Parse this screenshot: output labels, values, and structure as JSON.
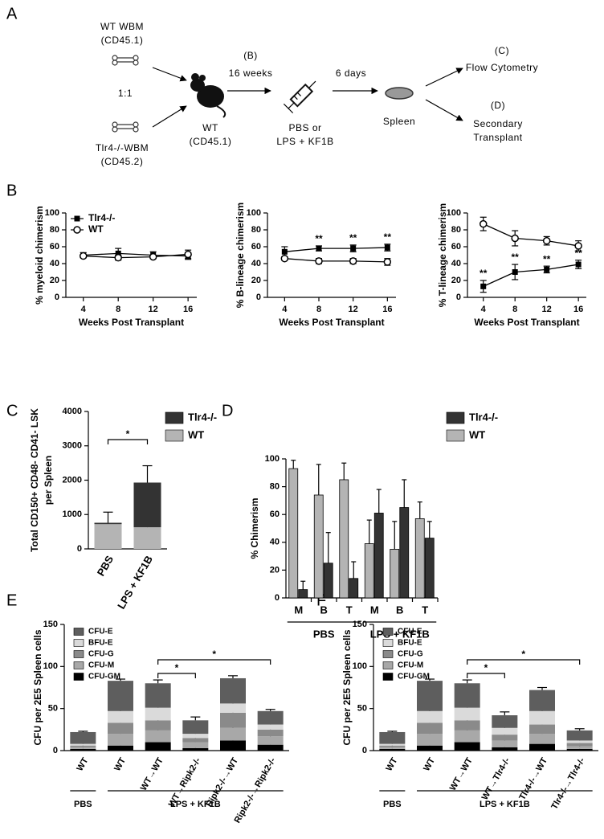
{
  "panel_labels": [
    "A",
    "B",
    "C",
    "D",
    "E",
    "F"
  ],
  "diagram": {
    "donor_wt": [
      "WT WBM",
      "(CD45.1)"
    ],
    "ratio": "1:1",
    "donor_ko": [
      "Tlr4-/-WBM",
      "(CD45.2)"
    ],
    "recipient": [
      "WT",
      "(CD45.1)"
    ],
    "wait": [
      "(B)",
      "16 weeks"
    ],
    "treatment": [
      "PBS or",
      "LPS + KF1B"
    ],
    "interval": "6 days",
    "organ": "Spleen",
    "readout_c": [
      "(C)",
      "Flow Cytometry"
    ],
    "readout_d": [
      "(D)",
      "Secondary",
      "Transplant"
    ]
  },
  "chart_data": [
    {
      "type": "line",
      "xlabel": "Weeks Post Transplant",
      "ylabel": [
        "% myeloid chimerism"
      ],
      "x": [
        4,
        8,
        12,
        16
      ],
      "xlim": [
        2,
        17
      ],
      "xticks": [
        4,
        8,
        12,
        16
      ],
      "ylim": [
        0,
        100
      ],
      "yticks": [
        0,
        20,
        40,
        60,
        80,
        100
      ],
      "legend": "upper-left",
      "series": [
        {
          "name": "Tlr4-/-",
          "marker": "filled-square",
          "color": "#000000",
          "values": [
            50,
            52,
            50,
            49
          ],
          "errors": [
            3,
            6,
            4,
            4
          ]
        },
        {
          "name": "WT",
          "marker": "open-circle",
          "color": "#000000",
          "values": [
            49,
            47,
            48,
            51
          ],
          "errors": [
            2,
            3,
            2,
            5
          ]
        }
      ]
    },
    {
      "type": "line",
      "xlabel": "Weeks Post Transplant",
      "ylabel": [
        "% B-lineage chimerism"
      ],
      "x": [
        4,
        8,
        12,
        16
      ],
      "xlim": [
        2,
        17
      ],
      "xticks": [
        4,
        8,
        12,
        16
      ],
      "ylim": [
        0,
        100
      ],
      "yticks": [
        0,
        20,
        40,
        60,
        80,
        100
      ],
      "series": [
        {
          "marker": "filled-square",
          "color": "#000000",
          "values": [
            54,
            58,
            58,
            59
          ],
          "errors": [
            6,
            3,
            4,
            4
          ],
          "annotations": [
            null,
            "**",
            "**",
            "**"
          ]
        },
        {
          "marker": "open-circle",
          "color": "#000000",
          "values": [
            46,
            43,
            43,
            42
          ],
          "errors": [
            2,
            3,
            3,
            4
          ]
        }
      ]
    },
    {
      "type": "line",
      "xlabel": "Weeks Post Transplant",
      "ylabel": [
        "% T-lineage chimerism"
      ],
      "x": [
        4,
        8,
        12,
        16
      ],
      "xlim": [
        2,
        17
      ],
      "xticks": [
        4,
        8,
        12,
        16
      ],
      "ylim": [
        0,
        100
      ],
      "yticks": [
        0,
        20,
        40,
        60,
        80,
        100
      ],
      "series": [
        {
          "marker": "filled-square",
          "color": "#000000",
          "values": [
            13,
            30,
            33,
            39
          ],
          "errors": [
            7,
            9,
            4,
            5
          ],
          "annotations": [
            "**",
            "**",
            "**",
            "**"
          ]
        },
        {
          "marker": "open-circle",
          "color": "#000000",
          "values": [
            87,
            70,
            67,
            61
          ],
          "errors": [
            8,
            9,
            5,
            6
          ]
        }
      ]
    },
    {
      "type": "stacked-bar",
      "ylabel": [
        "Total CD150+ CD48- CD41- LSK",
        "per Spleen"
      ],
      "categories": [
        "PBS",
        "LPS + KF1B"
      ],
      "ylim": [
        0,
        4000
      ],
      "yticks": [
        0,
        1000,
        2000,
        3000,
        4000
      ],
      "legend": "upper-right",
      "series": [
        {
          "name": "WT",
          "color": "#b4b4b4",
          "values": [
            720,
            630
          ],
          "errors": [
            null,
            60
          ]
        },
        {
          "name": "Tlr4-/-",
          "color": "#333333",
          "values": [
            40,
            1300
          ],
          "errors": [
            310,
            490
          ]
        }
      ],
      "brackets": [
        {
          "text": "*",
          "from": 0,
          "to": 1
        }
      ]
    },
    {
      "type": "grouped-bar",
      "ylabel": [
        "% Chimerism"
      ],
      "categories": [
        "M",
        "B",
        "T",
        "M",
        "B",
        "T"
      ],
      "groups": [
        "PBS",
        "LPS + KF1B"
      ],
      "ylim": [
        0,
        100
      ],
      "yticks": [
        0,
        20,
        40,
        60,
        80,
        100
      ],
      "legend": "upper-right",
      "series": [
        {
          "name": "Tlr4-/-",
          "color": "#333333",
          "values": [
            6,
            25,
            14,
            61,
            65,
            43
          ],
          "errors": [
            6,
            22,
            12,
            17,
            20,
            12
          ]
        },
        {
          "name": "WT",
          "color": "#b4b4b4",
          "values": [
            93,
            74,
            85,
            39,
            35,
            57
          ],
          "errors": [
            6,
            22,
            12,
            17,
            20,
            12
          ]
        }
      ]
    },
    {
      "type": "stacked-bar",
      "ylabel": [
        "CFU per 2E5 Spleen cells"
      ],
      "categories": [
        "WT",
        "WT",
        "WT→WT",
        "WT→Ripk2-/-",
        "Ripk2-/-→WT",
        "Ripk2-/-→Ripk2-/-"
      ],
      "groups": [
        "PBS",
        "LPS + KF1B"
      ],
      "ylim": [
        0,
        150
      ],
      "yticks": [
        0,
        50,
        100,
        150
      ],
      "legend": "upper-left",
      "series": [
        {
          "name": "CFU-GM",
          "color": "#000000",
          "values": [
            2,
            6,
            10,
            3,
            12,
            7
          ],
          "errors": [
            1,
            1,
            2,
            1,
            2,
            1
          ]
        },
        {
          "name": "CFU-M",
          "color": "#a8a8a8",
          "values": [
            2,
            14,
            14,
            7,
            15,
            10
          ],
          "errors": [
            1,
            2,
            2,
            1,
            3,
            1
          ]
        },
        {
          "name": "CFU-G",
          "color": "#8a8a8a",
          "values": [
            2,
            13,
            12,
            5,
            18,
            8
          ],
          "errors": [
            1,
            3,
            3,
            2,
            3,
            2
          ]
        },
        {
          "name": "BFU-E",
          "color": "#dadada",
          "values": [
            2,
            14,
            15,
            5,
            11,
            6
          ],
          "errors": [
            1,
            2,
            3,
            2,
            3,
            2
          ]
        },
        {
          "name": "CFU-E",
          "color": "#5e5e5e",
          "values": [
            14,
            36,
            29,
            16,
            30,
            16
          ],
          "errors": [
            1,
            2,
            4,
            4,
            3,
            2
          ]
        }
      ],
      "brackets": [
        {
          "text": "*",
          "from": 2,
          "to": 3
        },
        {
          "text": "*",
          "from": 2,
          "to": 5
        }
      ]
    },
    {
      "type": "stacked-bar",
      "ylabel": [
        "CFU per 2E5 Spleen cells"
      ],
      "categories": [
        "WT",
        "WT",
        "WT→WT",
        "WT→Tlr4-/-",
        "Tlr4-/-→WT",
        "Tlr4-/-→Tlr4-/-"
      ],
      "groups": [
        "PBS",
        "LPS + KF1B"
      ],
      "ylim": [
        0,
        150
      ],
      "yticks": [
        0,
        50,
        100,
        150
      ],
      "legend": "upper-left",
      "series": [
        {
          "name": "CFU-GM",
          "color": "#000000",
          "values": [
            2,
            6,
            10,
            4,
            8,
            2
          ],
          "errors": [
            1,
            1,
            2,
            1,
            2,
            1
          ]
        },
        {
          "name": "CFU-M",
          "color": "#a8a8a8",
          "values": [
            2,
            14,
            14,
            8,
            12,
            3
          ],
          "errors": [
            1,
            2,
            2,
            2,
            2,
            1
          ]
        },
        {
          "name": "CFU-G",
          "color": "#8a8a8a",
          "values": [
            2,
            13,
            12,
            7,
            11,
            4
          ],
          "errors": [
            1,
            3,
            3,
            2,
            2,
            1
          ]
        },
        {
          "name": "BFU-E",
          "color": "#dadada",
          "values": [
            2,
            14,
            15,
            8,
            16,
            3
          ],
          "errors": [
            1,
            2,
            3,
            2,
            2,
            1
          ]
        },
        {
          "name": "CFU-E",
          "color": "#5e5e5e",
          "values": [
            14,
            36,
            29,
            15,
            25,
            12
          ],
          "errors": [
            1,
            2,
            4,
            4,
            3,
            2
          ]
        }
      ],
      "brackets": [
        {
          "text": "*",
          "from": 2,
          "to": 3
        },
        {
          "text": "*",
          "from": 2,
          "to": 5
        }
      ]
    }
  ]
}
